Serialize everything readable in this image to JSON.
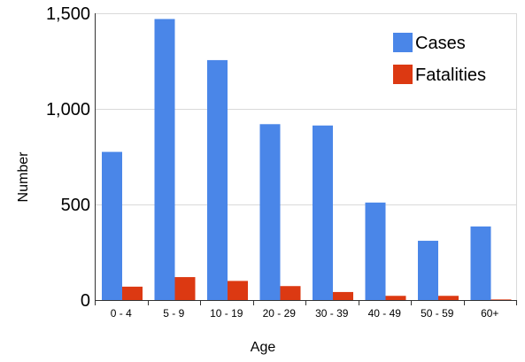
{
  "chart_data": {
    "type": "bar",
    "title": "",
    "xlabel": "Age",
    "ylabel": "Number",
    "categories": [
      "0 - 4",
      "5 - 9",
      "10 - 19",
      "20 - 29",
      "30 - 39",
      "40 - 49",
      "50 - 59",
      "60+"
    ],
    "series": [
      {
        "name": "Cases",
        "color": "#4a86e8",
        "values": [
          775,
          1470,
          1255,
          920,
          913,
          510,
          310,
          385
        ]
      },
      {
        "name": "Fatalities",
        "color": "#dc3912",
        "values": [
          70,
          120,
          100,
          73,
          42,
          22,
          22,
          3
        ]
      }
    ],
    "ylim": [
      0,
      1500
    ],
    "yticks": [
      0,
      500,
      1000,
      1500
    ],
    "ytick_labels": [
      "0",
      "500",
      "1,000",
      "1,500"
    ],
    "grid": true,
    "legend_position": "top-right"
  }
}
